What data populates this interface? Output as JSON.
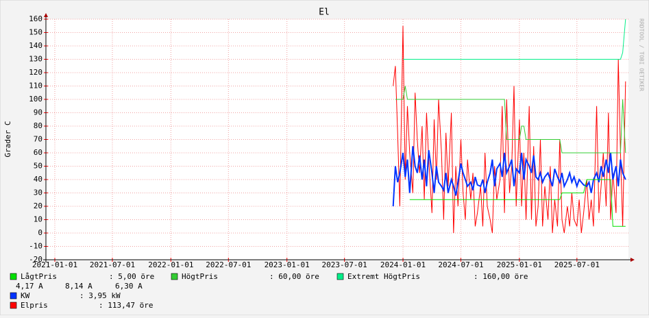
{
  "chart_data": {
    "type": "line",
    "title": "El",
    "y_label": "Grader C",
    "watermark": "RRDTOOL / TOBI OETIKER",
    "grid": true,
    "legend": "bottom",
    "xlim": [
      "2020-12-04",
      "2025-12-10"
    ],
    "xticks": [
      "2021-01-01",
      "2021-07-01",
      "2022-01-01",
      "2022-07-01",
      "2023-01-01",
      "2023-07-01",
      "2024-01-01",
      "2024-07-01",
      "2025-01-01",
      "2025-07-01"
    ],
    "ylim": [
      -20,
      160
    ],
    "yticks": [
      -20,
      -10,
      0,
      10,
      20,
      30,
      40,
      50,
      60,
      70,
      80,
      90,
      100,
      110,
      120,
      130,
      140,
      150,
      160
    ],
    "amperes": [
      "4,17 A",
      "8,14 A",
      "6,30 A"
    ],
    "x": [
      "2023-12-01",
      "2023-12-08",
      "2023-12-15",
      "2023-12-22",
      "2024-01-01",
      "2024-01-08",
      "2024-01-15",
      "2024-01-22",
      "2024-02-01",
      "2024-02-08",
      "2024-02-15",
      "2024-02-22",
      "2024-03-01",
      "2024-03-08",
      "2024-03-15",
      "2024-03-22",
      "2024-04-01",
      "2024-04-08",
      "2024-04-15",
      "2024-04-22",
      "2024-05-01",
      "2024-05-08",
      "2024-05-15",
      "2024-05-22",
      "2024-06-01",
      "2024-06-08",
      "2024-06-15",
      "2024-06-22",
      "2024-07-01",
      "2024-07-08",
      "2024-07-15",
      "2024-07-22",
      "2024-08-01",
      "2024-08-08",
      "2024-08-15",
      "2024-08-22",
      "2024-09-01",
      "2024-09-08",
      "2024-09-15",
      "2024-09-22",
      "2024-10-01",
      "2024-10-08",
      "2024-10-15",
      "2024-10-22",
      "2024-11-01",
      "2024-11-08",
      "2024-11-15",
      "2024-11-22",
      "2024-12-01",
      "2024-12-08",
      "2024-12-15",
      "2024-12-22",
      "2025-01-01",
      "2025-01-08",
      "2025-01-15",
      "2025-01-22",
      "2025-02-01",
      "2025-02-08",
      "2025-02-15",
      "2025-02-22",
      "2025-03-01",
      "2025-03-08",
      "2025-03-15",
      "2025-03-22",
      "2025-04-01",
      "2025-04-08",
      "2025-04-15",
      "2025-04-22",
      "2025-05-01",
      "2025-05-08",
      "2025-05-15",
      "2025-05-22",
      "2025-06-01",
      "2025-06-08",
      "2025-06-15",
      "2025-06-22",
      "2025-07-01",
      "2025-07-08",
      "2025-07-15",
      "2025-07-22",
      "2025-08-01",
      "2025-08-08",
      "2025-08-15",
      "2025-08-22",
      "2025-09-01",
      "2025-09-08",
      "2025-09-15",
      "2025-09-22",
      "2025-10-01",
      "2025-10-08",
      "2025-10-15",
      "2025-10-22",
      "2025-11-01",
      "2025-11-08",
      "2025-11-15",
      "2025-11-22",
      "2025-12-01"
    ],
    "series": [
      {
        "name": "LågtPris",
        "color": "#00e000",
        "legend_value": ": 5,00 öre",
        "values": [
          null,
          null,
          null,
          null,
          null,
          null,
          null,
          25,
          25,
          25,
          25,
          25,
          25,
          25,
          25,
          25,
          25,
          25,
          25,
          25,
          25,
          25,
          25,
          25,
          25,
          25,
          25,
          25,
          25,
          25,
          25,
          25,
          25,
          25,
          25,
          25,
          25,
          25,
          25,
          25,
          25,
          25,
          25,
          25,
          25,
          25,
          25,
          25,
          25,
          25,
          25,
          25,
          25,
          25,
          25,
          25,
          25,
          25,
          25,
          25,
          25,
          25,
          25,
          25,
          25,
          25,
          25,
          25,
          25,
          25,
          30,
          30,
          30,
          30,
          30,
          30,
          30,
          30,
          30,
          30,
          40,
          40,
          40,
          40,
          40,
          40,
          40,
          40,
          40,
          40,
          40,
          5,
          5,
          5,
          5,
          5,
          5
        ]
      },
      {
        "name": "HögtPris",
        "color": "#33cc33",
        "legend_value": ": 60,00 öre",
        "values": [
          null,
          100,
          100,
          100,
          100,
          110,
          100,
          100,
          100,
          100,
          100,
          100,
          100,
          100,
          100,
          100,
          100,
          100,
          100,
          100,
          100,
          100,
          100,
          100,
          100,
          100,
          100,
          100,
          100,
          100,
          100,
          100,
          100,
          100,
          100,
          100,
          100,
          100,
          100,
          100,
          100,
          100,
          100,
          100,
          100,
          100,
          100,
          70,
          70,
          70,
          70,
          70,
          70,
          80,
          80,
          70,
          70,
          70,
          70,
          70,
          70,
          70,
          70,
          70,
          70,
          70,
          70,
          70,
          70,
          70,
          60,
          60,
          60,
          60,
          60,
          60,
          60,
          60,
          60,
          60,
          60,
          60,
          60,
          60,
          60,
          60,
          60,
          60,
          60,
          60,
          60,
          60,
          60,
          60,
          60,
          100,
          60
        ]
      },
      {
        "name": "Extremt HögtPris",
        "color": "#00ee88",
        "legend_value": ": 160,00 öre",
        "values": [
          null,
          null,
          null,
          null,
          130,
          130,
          130,
          130,
          130,
          130,
          130,
          130,
          130,
          130,
          130,
          130,
          130,
          130,
          130,
          130,
          130,
          130,
          130,
          130,
          130,
          130,
          130,
          130,
          130,
          130,
          130,
          130,
          130,
          130,
          130,
          130,
          130,
          130,
          130,
          130,
          130,
          130,
          130,
          130,
          130,
          130,
          130,
          130,
          130,
          130,
          130,
          130,
          130,
          130,
          130,
          130,
          130,
          130,
          130,
          130,
          130,
          130,
          130,
          130,
          130,
          130,
          130,
          130,
          130,
          130,
          130,
          130,
          130,
          130,
          130,
          130,
          130,
          130,
          130,
          130,
          130,
          130,
          130,
          130,
          130,
          130,
          130,
          130,
          130,
          130,
          130,
          130,
          130,
          130,
          130,
          135,
          160
        ]
      },
      {
        "name": "KW",
        "color": "#0033ff",
        "legend_value": ": 3,95 kW",
        "values": [
          20,
          50,
          38,
          45,
          60,
          42,
          55,
          30,
          65,
          50,
          45,
          58,
          40,
          55,
          35,
          62,
          45,
          30,
          50,
          38,
          35,
          32,
          45,
          30,
          40,
          35,
          28,
          38,
          52,
          45,
          40,
          35,
          38,
          32,
          42,
          36,
          35,
          40,
          30,
          38,
          45,
          55,
          35,
          48,
          52,
          42,
          60,
          45,
          50,
          55,
          35,
          48,
          45,
          60,
          40,
          55,
          50,
          45,
          58,
          42,
          40,
          45,
          38,
          42,
          45,
          40,
          35,
          48,
          42,
          38,
          45,
          35,
          40,
          45,
          38,
          42,
          35,
          40,
          38,
          36,
          35,
          38,
          30,
          40,
          45,
          38,
          50,
          42,
          55,
          45,
          60,
          40,
          50,
          35,
          55,
          45,
          40
        ]
      },
      {
        "name": "Elpris",
        "color": "#ff0000",
        "legend_value": ": 113,47 öre",
        "values": [
          110,
          125,
          75,
          20,
          155,
          40,
          95,
          60,
          30,
          105,
          70,
          45,
          80,
          25,
          90,
          55,
          15,
          85,
          40,
          100,
          60,
          10,
          75,
          35,
          90,
          0,
          50,
          20,
          70,
          30,
          10,
          55,
          25,
          45,
          5,
          15,
          35,
          5,
          60,
          20,
          10,
          0,
          50,
          25,
          40,
          95,
          15,
          100,
          30,
          50,
          110,
          20,
          85,
          20,
          60,
          10,
          95,
          10,
          65,
          5,
          20,
          70,
          5,
          35,
          10,
          50,
          0,
          25,
          5,
          70,
          10,
          0,
          20,
          5,
          30,
          10,
          5,
          25,
          0,
          15,
          40,
          10,
          25,
          5,
          95,
          15,
          35,
          60,
          20,
          90,
          10,
          45,
          15,
          130,
          60,
          5,
          113.47
        ]
      }
    ]
  }
}
